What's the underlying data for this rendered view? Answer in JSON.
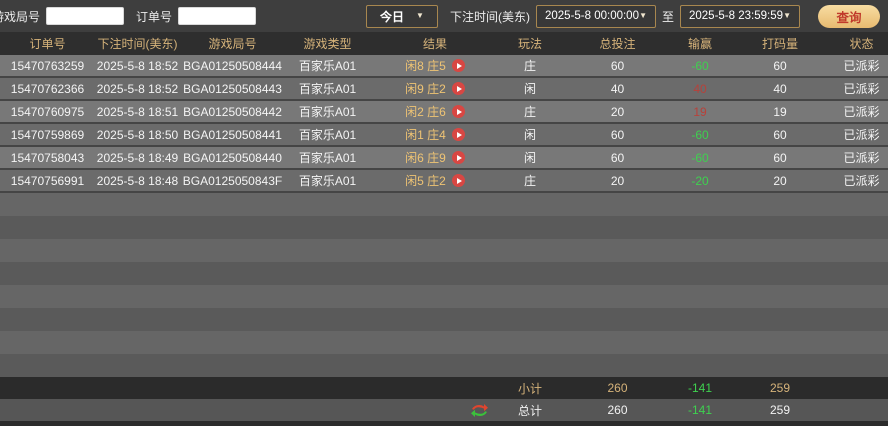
{
  "colors": {
    "gold": "#d6b37a",
    "gold-bright": "#efc474",
    "green": "#3ed14f",
    "loss-red": "#b8413a",
    "icon-red": "#d84743",
    "btn-text": "#c03a2b"
  },
  "filter_bar": {
    "game_round_label": "游戏局号",
    "game_round_value": "",
    "order_label": "订单号",
    "order_value": "",
    "date_preset": "今日",
    "bet_time_label": "下注时间(美东)",
    "date_from": "2025-5-8 00:00:00",
    "to_label": "至",
    "date_to": "2025-5-8 23:59:59",
    "query_label": "查询"
  },
  "table": {
    "headers": [
      "订单号",
      "下注时间(美东)",
      "游戏局号",
      "游戏类型",
      "结果",
      "玩法",
      "总投注",
      "输赢",
      "打码量",
      "状态"
    ],
    "rows": [
      {
        "order_no": "15470763259",
        "bet_time": "2025-5-8 18:52",
        "round_no": "BGA01250508444",
        "game_type": "百家乐A01",
        "result": "闲8 庄5",
        "play": "庄",
        "total_bet": "60",
        "win_loss": "-60",
        "win_loss_color": "green",
        "turnover": "60",
        "status": "已派彩"
      },
      {
        "order_no": "15470762366",
        "bet_time": "2025-5-8 18:52",
        "round_no": "BGA01250508443",
        "game_type": "百家乐A01",
        "result": "闲9 庄2",
        "play": "闲",
        "total_bet": "40",
        "win_loss": "40",
        "win_loss_color": "red",
        "turnover": "40",
        "status": "已派彩"
      },
      {
        "order_no": "15470760975",
        "bet_time": "2025-5-8 18:51",
        "round_no": "BGA01250508442",
        "game_type": "百家乐A01",
        "result": "闲2 庄6",
        "play": "庄",
        "total_bet": "20",
        "win_loss": "19",
        "win_loss_color": "red",
        "turnover": "19",
        "status": "已派彩"
      },
      {
        "order_no": "15470759869",
        "bet_time": "2025-5-8 18:50",
        "round_no": "BGA01250508441",
        "game_type": "百家乐A01",
        "result": "闲1 庄4",
        "play": "闲",
        "total_bet": "60",
        "win_loss": "-60",
        "win_loss_color": "green",
        "turnover": "60",
        "status": "已派彩"
      },
      {
        "order_no": "15470758043",
        "bet_time": "2025-5-8 18:49",
        "round_no": "BGA01250508440",
        "game_type": "百家乐A01",
        "result": "闲6 庄9",
        "play": "闲",
        "total_bet": "60",
        "win_loss": "-60",
        "win_loss_color": "green",
        "turnover": "60",
        "status": "已派彩"
      },
      {
        "order_no": "15470756991",
        "bet_time": "2025-5-8 18:48",
        "round_no": "BGA0125050843F",
        "game_type": "百家乐A01",
        "result": "闲5 庄2",
        "play": "庄",
        "total_bet": "20",
        "win_loss": "-20",
        "win_loss_color": "green",
        "turnover": "20",
        "status": "已派彩"
      }
    ],
    "subtotal": {
      "label": "小计",
      "total_bet": "260",
      "win_loss": "-141",
      "turnover": "259"
    },
    "total": {
      "label": "总计",
      "total_bet": "260",
      "win_loss": "-141",
      "turnover": "259"
    }
  }
}
